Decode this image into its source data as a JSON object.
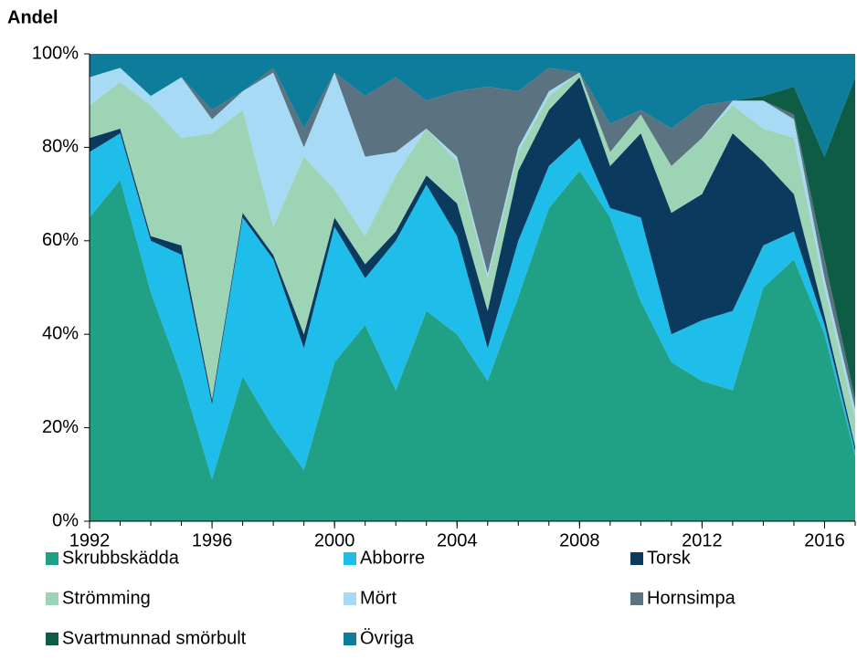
{
  "chart_data": {
    "type": "area",
    "stacked": true,
    "y_label": "Andel",
    "x": [
      1992,
      1993,
      1994,
      1995,
      1996,
      1997,
      1998,
      1999,
      2000,
      2001,
      2002,
      2003,
      2004,
      2005,
      2006,
      2007,
      2008,
      2009,
      2010,
      2011,
      2012,
      2013,
      2014,
      2015,
      2016,
      2017
    ],
    "xlim": [
      1992,
      2017
    ],
    "xticks": [
      1992,
      1996,
      2000,
      2004,
      2008,
      2012,
      2016
    ],
    "ylim": [
      0,
      100
    ],
    "yticks": [
      {
        "value": 0,
        "label": "0%"
      },
      {
        "value": 20,
        "label": "20%"
      },
      {
        "value": 40,
        "label": "40%"
      },
      {
        "value": 60,
        "label": "60%"
      },
      {
        "value": 80,
        "label": "80%"
      },
      {
        "value": 100,
        "label": "100%"
      }
    ],
    "series": [
      {
        "name": "Skrubbskädda",
        "color": "#20a084",
        "values": [
          65,
          73,
          49,
          31,
          9,
          31,
          20,
          11,
          34,
          42,
          28,
          45,
          40,
          30,
          48,
          67,
          75,
          65,
          47,
          34,
          30,
          28,
          50,
          56,
          40,
          14
        ]
      },
      {
        "name": "Abborre",
        "color": "#1fbdea",
        "values": [
          14,
          10,
          11,
          26,
          16,
          34,
          36,
          26,
          29,
          10,
          32,
          27,
          21,
          7,
          12,
          9,
          7,
          2,
          18,
          6,
          13,
          17,
          9,
          6,
          2,
          1
        ]
      },
      {
        "name": "Torsk",
        "color": "#0b3a5f",
        "values": [
          3,
          1,
          1,
          2,
          1,
          1,
          1,
          3,
          2,
          3,
          2,
          2,
          7,
          8,
          15,
          12,
          13,
          9,
          18,
          26,
          27,
          38,
          18,
          8,
          2,
          1
        ]
      },
      {
        "name": "Strömming",
        "color": "#9dd4b6",
        "values": [
          7,
          10,
          28,
          23,
          57,
          22,
          6,
          38,
          6,
          6,
          12,
          10,
          9,
          7,
          4,
          3,
          1,
          3,
          4,
          10,
          12,
          6,
          7,
          12,
          6,
          6
        ]
      },
      {
        "name": "Mört",
        "color": "#a6daf5",
        "values": [
          6,
          3,
          2,
          13,
          3,
          4,
          33,
          2,
          25,
          17,
          5,
          0,
          1,
          1,
          1,
          1,
          0,
          0,
          0,
          0,
          0,
          1,
          6,
          4,
          2,
          2
        ]
      },
      {
        "name": "Hornsimpa",
        "color": "#5b7381",
        "values": [
          0,
          0,
          0,
          0,
          2,
          0,
          1,
          4,
          0,
          13,
          16,
          6,
          14,
          40,
          12,
          5,
          0,
          6,
          1,
          8,
          7,
          0,
          0,
          1,
          4,
          2
        ]
      },
      {
        "name": "Svartmunnad smörbult",
        "color": "#0f5c46",
        "values": [
          0,
          0,
          0,
          0,
          0,
          0,
          0,
          0,
          0,
          0,
          0,
          0,
          0,
          0,
          0,
          0,
          0,
          0,
          0,
          0,
          0,
          0,
          1,
          6,
          22,
          69
        ]
      },
      {
        "name": "Övriga",
        "color": "#0e7c9b",
        "values": [
          5,
          3,
          9,
          5,
          12,
          8,
          3,
          16,
          4,
          9,
          5,
          10,
          8,
          7,
          8,
          3,
          4,
          15,
          12,
          16,
          11,
          10,
          9,
          7,
          22,
          5
        ]
      }
    ]
  }
}
